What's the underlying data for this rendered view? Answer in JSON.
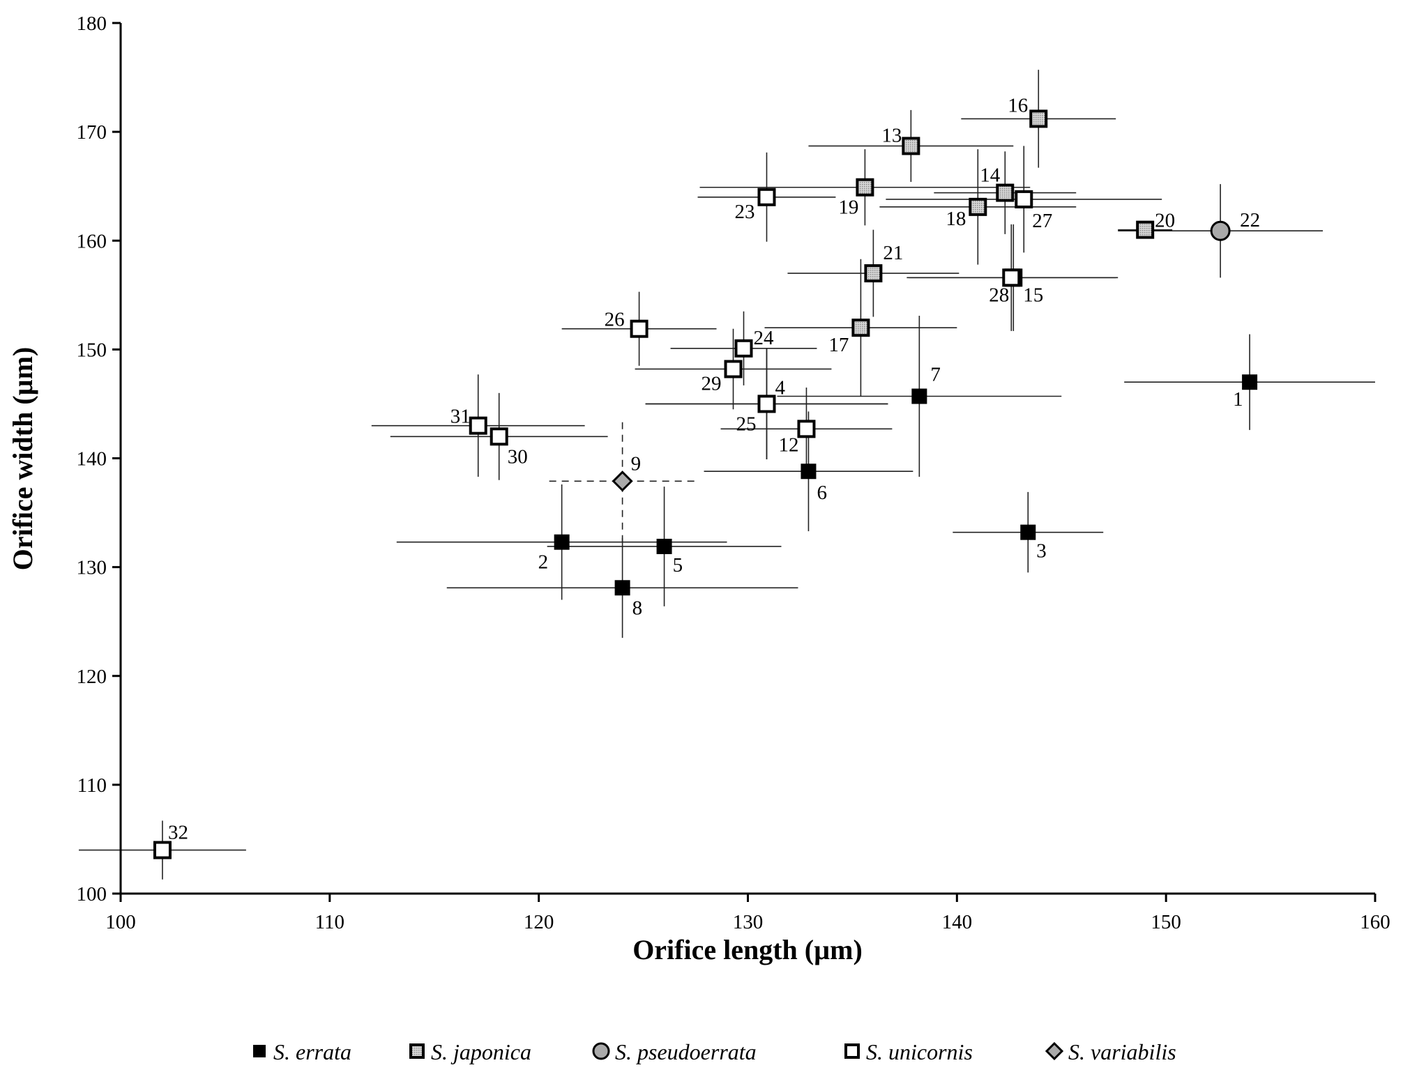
{
  "chart_data": {
    "type": "scatter",
    "xlabel": "Orifice length (µm)",
    "ylabel": "Orifice width (µm)",
    "xlim": [
      100,
      160
    ],
    "ylim": [
      100,
      180
    ],
    "xticks": [
      100,
      110,
      120,
      130,
      140,
      150,
      160
    ],
    "yticks": [
      100,
      110,
      120,
      130,
      140,
      150,
      160,
      170,
      180
    ],
    "grid": false,
    "legend_position": "bottom",
    "error_bars": true,
    "series": [
      {
        "name": "S. errata",
        "marker": "square",
        "color": "#000000",
        "points": [
          {
            "id": "1",
            "x": 154.0,
            "y": 147.0,
            "xerr": 6.0,
            "yerr": 4.4
          },
          {
            "id": "2",
            "x": 121.1,
            "y": 132.3,
            "xerr": 7.9,
            "yerr": 5.3
          },
          {
            "id": "3",
            "x": 143.4,
            "y": 133.2,
            "xerr": 3.6,
            "yerr": 3.7
          },
          {
            "id": "4",
            "x": 130.9,
            "y": 145.0,
            "xerr": 5.8,
            "yerr": 5.1
          },
          {
            "id": "5",
            "x": 126.0,
            "y": 131.9,
            "xerr": 5.6,
            "yerr": 5.5
          },
          {
            "id": "6",
            "x": 132.9,
            "y": 138.8,
            "xerr": 5.0,
            "yerr": 5.5
          },
          {
            "id": "7",
            "x": 138.2,
            "y": 145.7,
            "xerr": 6.8,
            "yerr": 7.4
          },
          {
            "id": "8",
            "x": 124.0,
            "y": 128.1,
            "xerr": 8.4,
            "yerr": 4.6
          }
        ]
      },
      {
        "name": "S. japonica",
        "marker": "square",
        "color": "#b0b0b0",
        "points": [
          {
            "id": "13",
            "x": 137.8,
            "y": 168.7,
            "xerr": 4.9,
            "yerr": 3.3
          },
          {
            "id": "14",
            "x": 142.3,
            "y": 164.4,
            "xerr": 3.4,
            "yerr": 3.8
          },
          {
            "id": "16",
            "x": 143.9,
            "y": 171.2,
            "xerr": 3.7,
            "yerr": 4.5
          },
          {
            "id": "17",
            "x": 135.4,
            "y": 152.0,
            "xerr": 4.6,
            "yerr": 6.3
          },
          {
            "id": "18",
            "x": 141.0,
            "y": 163.1,
            "xerr": 4.7,
            "yerr": 5.3
          },
          {
            "id": "19",
            "x": 135.6,
            "y": 164.9,
            "xerr": 7.9,
            "yerr": 3.5
          },
          {
            "id": "20",
            "x": 149.0,
            "y": 161.0,
            "xerr": 1.3,
            "yerr": 0
          },
          {
            "id": "21",
            "x": 136.0,
            "y": 157.0,
            "xerr": 4.1,
            "yerr": 4.0
          }
        ]
      },
      {
        "name": "S. pseudoerrata",
        "marker": "circle",
        "color": "#aaaaaa",
        "points": [
          {
            "id": "22",
            "x": 152.6,
            "y": 160.9,
            "xerr": 4.9,
            "yerr": 4.3
          }
        ]
      },
      {
        "name": "S. unicornis",
        "marker": "square",
        "color": "#ffffff",
        "points": [
          {
            "id": "12",
            "x": 132.8,
            "y": 142.7,
            "xerr": 4.1,
            "yerr": 3.8
          },
          {
            "id": "15",
            "x": 142.7,
            "y": 156.6,
            "xerr": 5.0,
            "yerr": 4.9
          },
          {
            "id": "23",
            "x": 130.9,
            "y": 164.0,
            "xerr": 3.3,
            "yerr": 4.1
          },
          {
            "id": "24",
            "x": 129.8,
            "y": 150.1,
            "xerr": 3.5,
            "yerr": 3.4
          },
          {
            "id": "25",
            "x": 130.9,
            "y": 145.0,
            "xerr": 5.8,
            "yerr": 5.1
          },
          {
            "id": "26",
            "x": 124.8,
            "y": 151.9,
            "xerr": 3.7,
            "yerr": 3.4
          },
          {
            "id": "27",
            "x": 143.2,
            "y": 163.8,
            "xerr": 6.6,
            "yerr": 4.9
          },
          {
            "id": "28",
            "x": 142.6,
            "y": 156.6,
            "xerr": 5.0,
            "yerr": 4.9
          },
          {
            "id": "29",
            "x": 129.3,
            "y": 148.2,
            "xerr": 4.7,
            "yerr": 3.7
          },
          {
            "id": "30",
            "x": 118.1,
            "y": 142.0,
            "xerr": 5.2,
            "yerr": 4.0
          },
          {
            "id": "31",
            "x": 117.1,
            "y": 143.0,
            "xerr": 5.1,
            "yerr": 4.7
          },
          {
            "id": "32",
            "x": 102.0,
            "y": 104.0,
            "xerr": 4.0,
            "yerr": 2.7
          }
        ]
      },
      {
        "name": "S. variabilis",
        "marker": "diamond",
        "color": "#aaaaaa",
        "dashed_error_bars": true,
        "points": [
          {
            "id": "9",
            "x": 124.0,
            "y": 137.9,
            "xerr": 3.5,
            "yerr": 5.6
          }
        ]
      }
    ]
  }
}
